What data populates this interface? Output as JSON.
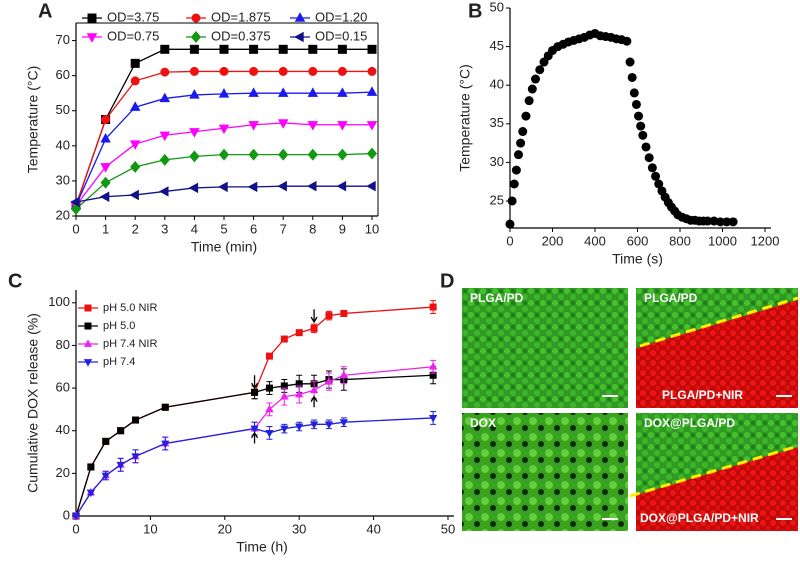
{
  "chart_data": [
    {
      "type": "line",
      "panel_label": "A",
      "x_label": "Time (min)",
      "y_label": "Temperature (°C)",
      "x": [
        0,
        1,
        2,
        3,
        4,
        5,
        6,
        7,
        8,
        9,
        10
      ],
      "xlim": [
        0,
        10
      ],
      "xticks": [
        0,
        1,
        2,
        3,
        4,
        5,
        6,
        7,
        8,
        9,
        10
      ],
      "ylim": [
        20,
        75
      ],
      "yticks": [
        20,
        30,
        40,
        50,
        60,
        70
      ],
      "series": [
        {
          "name": "OD=3.75",
          "color": "#000000",
          "marker": "square",
          "values": [
            23,
            47.5,
            63.5,
            67.5,
            67.5,
            67.5,
            67.5,
            67.5,
            67.5,
            67.5,
            67.5
          ]
        },
        {
          "name": "OD=1.875",
          "color": "#ee1111",
          "marker": "circle",
          "values": [
            23,
            47.5,
            58.5,
            61,
            61.2,
            61.2,
            61.2,
            61.2,
            61.2,
            61.2,
            61.2
          ]
        },
        {
          "name": "OD=1.20",
          "color": "#1a1aee",
          "marker": "triangle-up",
          "values": [
            23,
            42,
            51,
            53.5,
            54.5,
            54.8,
            55,
            55,
            55,
            55,
            55.3
          ]
        },
        {
          "name": "OD=0.75",
          "color": "#ff00ff",
          "marker": "triangle-down",
          "values": [
            23,
            34,
            40.5,
            43,
            44,
            45,
            46,
            46.5,
            46,
            46,
            46
          ]
        },
        {
          "name": "OD=0.375",
          "color": "#119911",
          "marker": "diamond",
          "values": [
            22,
            29.5,
            34,
            36,
            37,
            37.5,
            37.5,
            37.5,
            37.5,
            37.5,
            37.8
          ]
        },
        {
          "name": "OD=0.15",
          "color": "#111188",
          "marker": "triangle-left",
          "values": [
            24,
            25.5,
            26,
            27,
            28,
            28.3,
            28.3,
            28.5,
            28.5,
            28.5,
            28.5
          ]
        }
      ]
    },
    {
      "type": "scatter",
      "panel_label": "B",
      "x_label": "Time (s)",
      "y_label": "Temperature (°C)",
      "color": "#000000",
      "xlim": [
        0,
        1200
      ],
      "xticks": [
        0,
        200,
        400,
        600,
        800,
        1000,
        1200
      ],
      "ylim": [
        21.5,
        50
      ],
      "yticks": [
        25,
        30,
        35,
        40,
        45,
        50
      ],
      "x": [
        0,
        10,
        20,
        30,
        40,
        50,
        60,
        75,
        90,
        105,
        120,
        140,
        160,
        180,
        200,
        225,
        250,
        275,
        300,
        325,
        350,
        375,
        400,
        425,
        450,
        475,
        500,
        525,
        550,
        565,
        575,
        585,
        595,
        605,
        615,
        625,
        640,
        655,
        670,
        685,
        700,
        715,
        730,
        745,
        760,
        775,
        790,
        810,
        830,
        850,
        870,
        890,
        910,
        930,
        960,
        990,
        1020,
        1050
      ],
      "values": [
        22,
        25,
        27.2,
        29,
        31,
        32.5,
        34,
        36,
        38,
        39.5,
        40.8,
        42,
        43,
        43.8,
        44.5,
        45,
        45.3,
        45.6,
        45.8,
        46,
        46.2,
        46.5,
        46.7,
        46.4,
        46.3,
        46.2,
        46,
        45.9,
        45.7,
        43,
        41,
        39,
        37.5,
        36,
        34.7,
        33.5,
        32,
        30.6,
        29.3,
        28.2,
        27.2,
        26.3,
        25.5,
        24.8,
        24.2,
        23.7,
        23.2,
        22.9,
        22.7,
        22.5,
        22.5,
        22.4,
        22.4,
        22.4,
        22.4,
        22.3,
        22.3,
        22.3
      ]
    },
    {
      "type": "line",
      "panel_label": "C",
      "x_label": "Time (h)",
      "y_label": "Cumulative DOX release (%)",
      "x": [
        0,
        2,
        4,
        6,
        8,
        12,
        24,
        26,
        28,
        30,
        32,
        34,
        36,
        48
      ],
      "xlim": [
        0,
        50
      ],
      "xticks": [
        0,
        10,
        20,
        30,
        40,
        50
      ],
      "ylim": [
        0,
        106
      ],
      "yticks": [
        0,
        20,
        40,
        60,
        80,
        100
      ],
      "series": [
        {
          "name": "pH 5.0 NIR",
          "color": "#ee1111",
          "marker": "square",
          "values": [
            0,
            23,
            35,
            40,
            45,
            51,
            58,
            75,
            83,
            86,
            88,
            94,
            95,
            98
          ],
          "errors": [
            0,
            1,
            1,
            1,
            1,
            1,
            3,
            1,
            1,
            1,
            2,
            2,
            1,
            3
          ]
        },
        {
          "name": "pH 5.0",
          "color": "#000000",
          "marker": "square",
          "values": [
            0,
            23,
            35,
            40,
            45,
            51,
            58,
            60,
            61,
            62,
            62,
            64,
            64,
            66
          ],
          "errors": [
            0,
            1,
            1,
            1,
            1,
            1,
            3,
            3,
            3,
            4,
            4,
            4,
            5,
            4
          ]
        },
        {
          "name": "pH 7.4 NIR",
          "color": "#ee22ee",
          "marker": "triangle-up",
          "values": [
            0,
            11,
            19,
            24,
            28,
            34,
            41,
            50,
            56,
            57,
            59,
            63,
            66,
            70
          ],
          "errors": [
            0,
            1,
            2,
            3,
            3,
            3,
            3,
            3,
            4,
            4,
            4,
            4,
            4,
            3
          ]
        },
        {
          "name": "pH 7.4",
          "color": "#2222dd",
          "marker": "triangle-down",
          "values": [
            0,
            11,
            19,
            24,
            28,
            34,
            41,
            39,
            41,
            42,
            43,
            43,
            44,
            46
          ],
          "errors": [
            0,
            1,
            2,
            3,
            3,
            3,
            3,
            3,
            2,
            2,
            2,
            2,
            2,
            3
          ]
        }
      ]
    }
  ],
  "panel_d": {
    "panel_label": "D",
    "images": [
      {
        "label": "PLGA/PD"
      },
      {
        "label": "PLGA/PD",
        "label_nir": "PLGA/PD+NIR"
      },
      {
        "label": "DOX"
      },
      {
        "label": "DOX@PLGA/PD",
        "label_nir": "DOX@PLGA/PD+NIR"
      }
    ]
  }
}
